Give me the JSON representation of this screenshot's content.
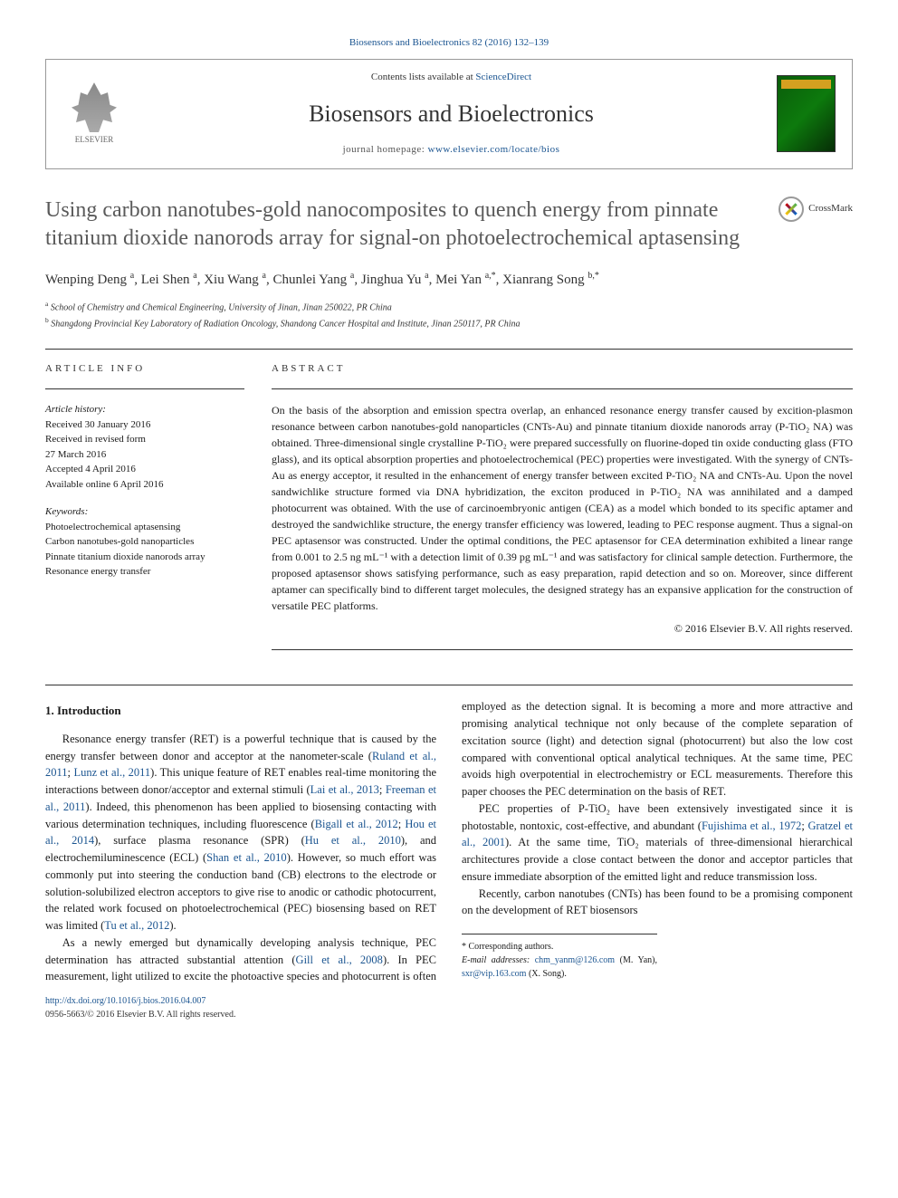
{
  "journal_ref": "Biosensors and Bioelectronics 82 (2016) 132–139",
  "header": {
    "contents_prefix": "Contents lists available at ",
    "contents_link": "ScienceDirect",
    "journal_name": "Biosensors and Bioelectronics",
    "homepage_prefix": "journal homepage: ",
    "homepage_link": "www.elsevier.com/locate/bios",
    "publisher": "ELSEVIER"
  },
  "crossmark_label": "CrossMark",
  "title": "Using carbon nanotubes-gold nanocomposites to quench energy from pinnate titanium dioxide nanorods array for signal-on photoelectrochemical aptasensing",
  "authors_html": "Wenping Deng <sup>a</sup>, Lei Shen <sup>a</sup>, Xiu Wang <sup>a</sup>, Chunlei Yang <sup>a</sup>, Jinghua Yu <sup>a</sup>, Mei Yan <sup>a,*</sup>, Xianrang Song <sup>b,*</sup>",
  "affiliations": [
    {
      "sup": "a",
      "text": "School of Chemistry and Chemical Engineering, University of Jinan, Jinan 250022, PR China"
    },
    {
      "sup": "b",
      "text": "Shangdong Provincial Key Laboratory of Radiation Oncology, Shandong Cancer Hospital and Institute, Jinan 250117, PR China"
    }
  ],
  "article_info": {
    "label": "ARTICLE INFO",
    "history_heading": "Article history:",
    "history": [
      "Received 30 January 2016",
      "Received in revised form",
      "27 March 2016",
      "Accepted 4 April 2016",
      "Available online 6 April 2016"
    ],
    "keywords_heading": "Keywords:",
    "keywords": [
      "Photoelectrochemical aptasensing",
      "Carbon nanotubes-gold nanoparticles",
      "Pinnate titanium dioxide nanorods array",
      "Resonance energy transfer"
    ]
  },
  "abstract": {
    "label": "ABSTRACT",
    "text": "On the basis of the absorption and emission spectra overlap, an enhanced resonance energy transfer caused by excition-plasmon resonance between carbon nanotubes-gold nanoparticles (CNTs-Au) and pinnate titanium dioxide nanorods array (P-TiO₂ NA) was obtained. Three-dimensional single crystalline P-TiO₂ were prepared successfully on fluorine-doped tin oxide conducting glass (FTO glass), and its optical absorption properties and photoelectrochemical (PEC) properties were investigated. With the synergy of CNTs-Au as energy acceptor, it resulted in the enhancement of energy transfer between excited P-TiO₂ NA and CNTs-Au. Upon the novel sandwichlike structure formed via DNA hybridization, the exciton produced in P-TiO₂ NA was annihilated and a damped photocurrent was obtained. With the use of carcinoembryonic antigen (CEA) as a model which bonded to its specific aptamer and destroyed the sandwichlike structure, the energy transfer efficiency was lowered, leading to PEC response augment. Thus a signal-on PEC aptasensor was constructed. Under the optimal conditions, the PEC aptasensor for CEA determination exhibited a linear range from 0.001 to 2.5 ng mL⁻¹ with a detection limit of 0.39 pg mL⁻¹ and was satisfactory for clinical sample detection. Furthermore, the proposed aptasensor shows satisfying performance, such as easy preparation, rapid detection and so on. Moreover, since different aptamer can specifically bind to different target molecules, the designed strategy has an expansive application for the construction of versatile PEC platforms.",
    "copyright": "© 2016 Elsevier B.V. All rights reserved."
  },
  "body": {
    "section_heading": "1. Introduction",
    "paragraphs": [
      "Resonance energy transfer (RET) is a powerful technique that is caused by the energy transfer between donor and acceptor at the nanometer-scale (<a class='ref-link' href='#'>Ruland et al., 2011</a>; <a class='ref-link' href='#'>Lunz et al., 2011</a>). This unique feature of RET enables real-time monitoring the interactions between donor/acceptor and external stimuli (<a class='ref-link' href='#'>Lai et al., 2013</a>; <a class='ref-link' href='#'>Freeman et al., 2011</a>). Indeed, this phenomenon has been applied to biosensing contacting with various determination techniques, including fluorescence (<a class='ref-link' href='#'>Bigall et al., 2012</a>; <a class='ref-link' href='#'>Hou et al., 2014</a>), surface plasma resonance (SPR) (<a class='ref-link' href='#'>Hu et al., 2010</a>), and electrochemiluminescence (ECL) (<a class='ref-link' href='#'>Shan et al., 2010</a>). However, so much effort was commonly put into steering the conduction band (CB) electrons to the electrode or solution-solubilized electron acceptors to give rise to anodic or cathodic photocurrent, the related work focused on photoelectrochemical (PEC) biosensing based on RET was limited (<a class='ref-link' href='#'>Tu et al., 2012</a>).",
      "As a newly emerged but dynamically developing analysis technique, PEC determination has attracted substantial attention (<a class='ref-link' href='#'>Gill et al., 2008</a>). In PEC measurement, light utilized to excite the photoactive species and photocurrent is often employed as the detection signal. It is becoming a more and more attractive and promising analytical technique not only because of the complete separation of excitation source (light) and detection signal (photocurrent) but also the low cost compared with conventional optical analytical techniques. At the same time, PEC avoids high overpotential in electrochemistry or ECL measurements. Therefore this paper chooses the PEC determination on the basis of RET.",
      "PEC properties of P-TiO₂ have been extensively investigated since it is photostable, nontoxic, cost-effective, and abundant (<a class='ref-link' href='#'>Fujishima et al., 1972</a>; <a class='ref-link' href='#'>Gratzel et al., 2001</a>). At the same time, TiO₂ materials of three-dimensional hierarchical architectures provide a close contact between the donor and acceptor particles that ensure immediate absorption of the emitted light and reduce transmission loss.",
      "Recently, carbon nanotubes (CNTs) has been found to be a promising component on the development of RET biosensors"
    ]
  },
  "footnotes": {
    "corr_label": "* Corresponding authors.",
    "email_label": "E-mail addresses: ",
    "emails": [
      {
        "addr": "chm_yanm@126.com",
        "who": "(M. Yan)"
      },
      {
        "addr": "sxr@vip.163.com",
        "who": "(X. Song)"
      }
    ]
  },
  "doi": {
    "link": "http://dx.doi.org/10.1016/j.bios.2016.04.007",
    "issn_line": "0956-5663/© 2016 Elsevier B.V. All rights reserved."
  },
  "colors": {
    "link": "#1a5490",
    "title_gray": "#5a5a5a",
    "rule": "#333333"
  }
}
